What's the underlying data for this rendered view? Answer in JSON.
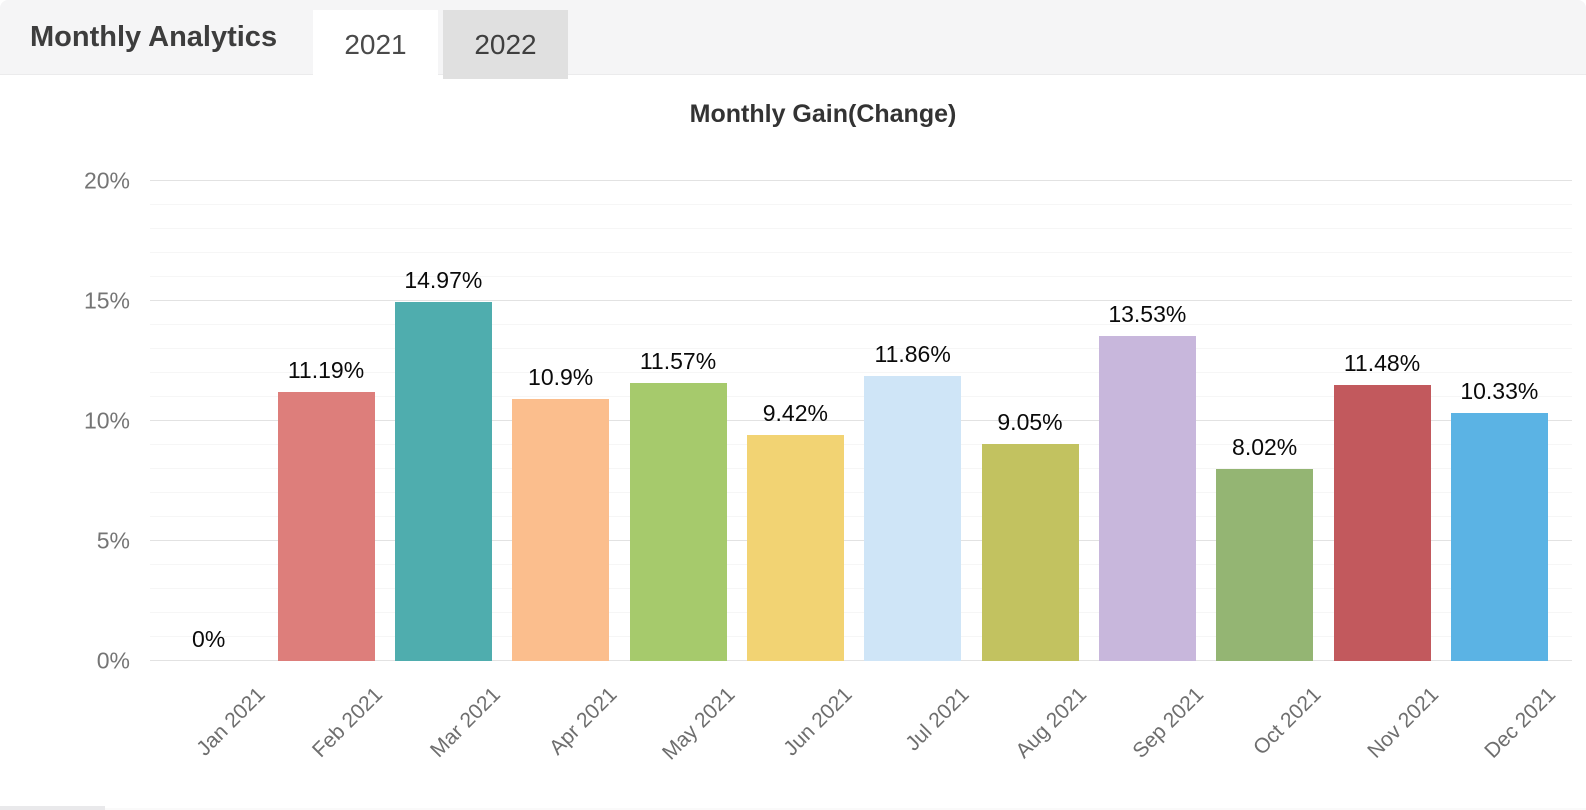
{
  "header": {
    "title": "Monthly Analytics",
    "tabs": [
      {
        "label": "2021",
        "active": true
      },
      {
        "label": "2022",
        "active": false
      }
    ]
  },
  "chart_data": {
    "type": "bar",
    "title": "Monthly Gain(Change)",
    "categories": [
      "Jan 2021",
      "Feb 2021",
      "Mar 2021",
      "Apr 2021",
      "May 2021",
      "Jun 2021",
      "Jul 2021",
      "Aug 2021",
      "Sep 2021",
      "Oct 2021",
      "Nov 2021",
      "Dec 2021"
    ],
    "values": [
      0,
      11.19,
      14.97,
      10.9,
      11.57,
      9.42,
      11.86,
      9.05,
      13.53,
      8.02,
      11.48,
      10.33
    ],
    "value_labels": [
      "0%",
      "11.19%",
      "14.97%",
      "10.9%",
      "11.57%",
      "9.42%",
      "11.86%",
      "9.05%",
      "13.53%",
      "8.02%",
      "11.48%",
      "10.33%"
    ],
    "bar_colors": [
      null,
      "#dd7e7b",
      "#4fadae",
      "#fbbe8d",
      "#a6ca6c",
      "#f2d373",
      "#cfe5f7",
      "#c2c260",
      "#c8b7dc",
      "#94b573",
      "#c2595d",
      "#5bb3e4"
    ],
    "y_ticks": [
      "0%",
      "5%",
      "10%",
      "15%",
      "20%"
    ],
    "ylim": [
      0,
      20
    ],
    "xlabel": "",
    "ylabel": "",
    "grid": "major lines every 5%, minor lines every 1%",
    "legend_position": "none",
    "x_label_rotation": 45
  }
}
